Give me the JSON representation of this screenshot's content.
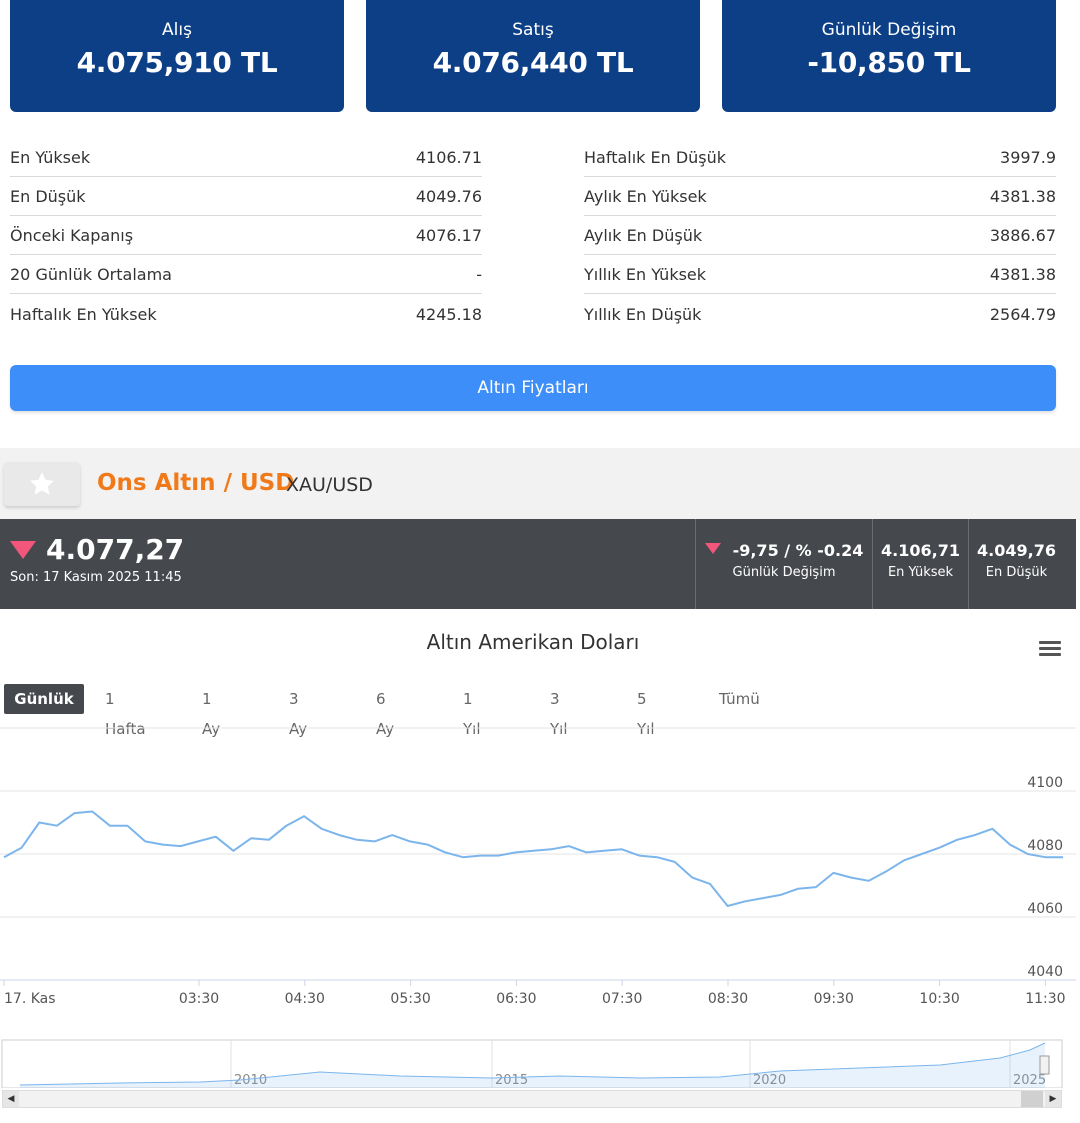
{
  "cards": [
    {
      "label": "Alış",
      "value": "4.075,910 TL"
    },
    {
      "label": "Satış",
      "value": "4.076,440 TL"
    },
    {
      "label": "Günlük Değişim",
      "value": "-10,850 TL"
    }
  ],
  "stats_left": [
    {
      "label": "En Yüksek",
      "value": "4106.71"
    },
    {
      "label": "En Düşük",
      "value": "4049.76"
    },
    {
      "label": "Önceki Kapanış",
      "value": "4076.17"
    },
    {
      "label": "20 Günlük Ortalama",
      "value": "-"
    },
    {
      "label": "Haftalık En Yüksek",
      "value": "4245.18"
    }
  ],
  "stats_right": [
    {
      "label": "Haftalık En Düşük",
      "value": "3997.9"
    },
    {
      "label": "Aylık En Yüksek",
      "value": "4381.38"
    },
    {
      "label": "Aylık En Düşük",
      "value": "3886.67"
    },
    {
      "label": "Yıllık En Yüksek",
      "value": "4381.38"
    },
    {
      "label": "Yıllık En Düşük",
      "value": "2564.79"
    }
  ],
  "gold_prices_button": "Altın Fiyatları",
  "instrument": {
    "title": "Ons Altın / USD",
    "code": "XAU/USD",
    "price": "4.077,27",
    "last_update": "Son: 17 Kasım 2025 11:45",
    "change_value": "-9,75 / % -0.24",
    "change_label": "Günlük Değişim",
    "high_value": "4.106,71",
    "high_label": "En Yüksek",
    "low_value": "4.049,76",
    "low_label": "En Düşük",
    "trend": "down"
  },
  "colors": {
    "card_bg": "#0d3f87",
    "button_bg": "#3d8ef8",
    "accent_orange": "#f07a1a",
    "down_red": "#f2567a",
    "line_blue": "#7cb5ec"
  },
  "chart_menu_icon": "hamburger-menu-icon",
  "favorite_icon": "star-icon",
  "range_buttons": [
    "Günlük",
    "1 Hafta",
    "1 Ay",
    "3 Ay",
    "6 Ay",
    "1 Yıl",
    "3 Yıl",
    "5 Yıl",
    "Tümü"
  ],
  "active_range": "Günlük",
  "chart_data": {
    "type": "line",
    "title": "Altın Amerikan Doları",
    "xlabel": "",
    "ylabel": "",
    "x_ticks": [
      "17. Kas",
      "03:30",
      "04:30",
      "05:30",
      "06:30",
      "07:30",
      "08:30",
      "09:30",
      "10:30",
      "11:30"
    ],
    "y_ticks": [
      4040,
      4060,
      4080,
      4100
    ],
    "ylim": [
      4040,
      4106
    ],
    "grid": true,
    "series": [
      {
        "values": [
          4079,
          4082,
          4090,
          4089,
          4093,
          4093.5,
          4089,
          4089,
          4084,
          4083,
          4082.5,
          4084,
          4085.5,
          4081,
          4085,
          4084.5,
          4089,
          4092,
          4088,
          4086,
          4084.5,
          4084,
          4086,
          4084,
          4083,
          4080.5,
          4079,
          4079.5,
          4079.5,
          4080.5,
          4081,
          4081.5,
          4082.5,
          4080.5,
          4081,
          4081.5,
          4079.5,
          4079,
          4077.5,
          4072.5,
          4070.5,
          4063.5,
          4065,
          4066,
          4067,
          4069,
          4069.5,
          4074,
          4072.5,
          4071.5,
          4074.5,
          4078,
          4080,
          4082,
          4084.5,
          4086,
          4088,
          4083,
          4080,
          4079,
          4079
        ]
      }
    ]
  },
  "navigator": {
    "year_labels": [
      "2010",
      "2015",
      "2020",
      "2025"
    ]
  }
}
